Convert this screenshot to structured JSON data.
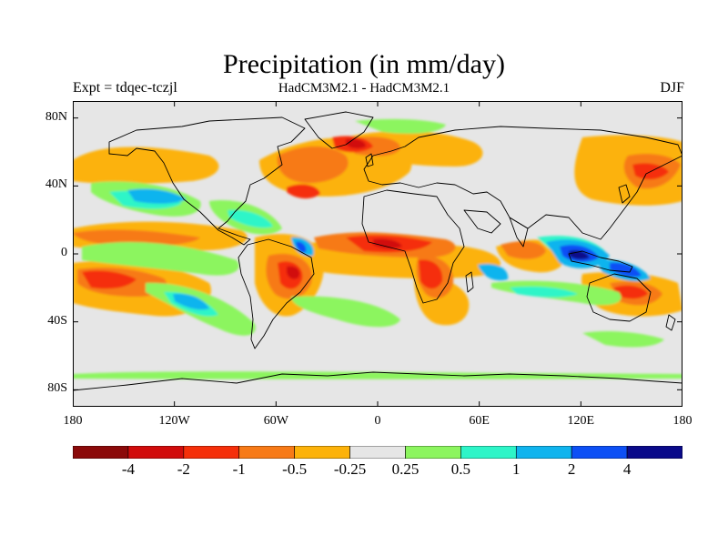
{
  "title": "Precipitation (in mm/day)",
  "subtitle_left": "Expt = tdqec-tczjl",
  "subtitle_center": "HadCM3M2.1 - HadCM3M2.1",
  "subtitle_right": "DJF",
  "lat_ticks": [
    {
      "label": "80N",
      "value": 80
    },
    {
      "label": "40N",
      "value": 40
    },
    {
      "label": "0",
      "value": 0
    },
    {
      "label": "40S",
      "value": -40
    },
    {
      "label": "80S",
      "value": -80
    }
  ],
  "lon_ticks": [
    {
      "label": "180",
      "value": -180
    },
    {
      "label": "120W",
      "value": -120
    },
    {
      "label": "60W",
      "value": -60
    },
    {
      "label": "0",
      "value": 0
    },
    {
      "label": "60E",
      "value": 60
    },
    {
      "label": "120E",
      "value": 120
    },
    {
      "label": "180",
      "value": 180
    }
  ],
  "colorbar": {
    "colors": [
      "#8b0a0a",
      "#d10c0c",
      "#f52f0a",
      "#f77a17",
      "#fcb20a",
      "#e6e6e6",
      "#8cf55f",
      "#2ef5c8",
      "#10b4ee",
      "#0d50f5",
      "#0a0a8a"
    ],
    "labels": [
      "-4",
      "-2",
      "-1",
      "-0.5",
      "-0.25",
      "0.25",
      "0.5",
      "1",
      "2",
      "4"
    ]
  },
  "colors": {
    "background_field": "#e6e6e6",
    "coastline": "#000000"
  }
}
